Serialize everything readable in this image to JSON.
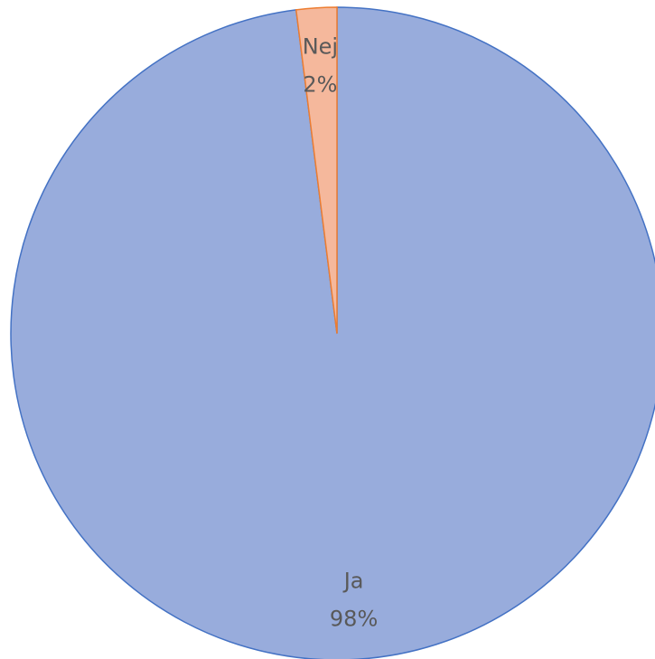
{
  "chart_data": {
    "type": "pie",
    "categories": [
      "Ja",
      "Nej"
    ],
    "values": [
      98,
      2
    ],
    "value_labels": [
      "98%",
      "2%"
    ],
    "colors": [
      "#98acdc",
      "#f5b89c"
    ],
    "edgecolors": [
      "#4472c4",
      "#ed7d31"
    ]
  }
}
